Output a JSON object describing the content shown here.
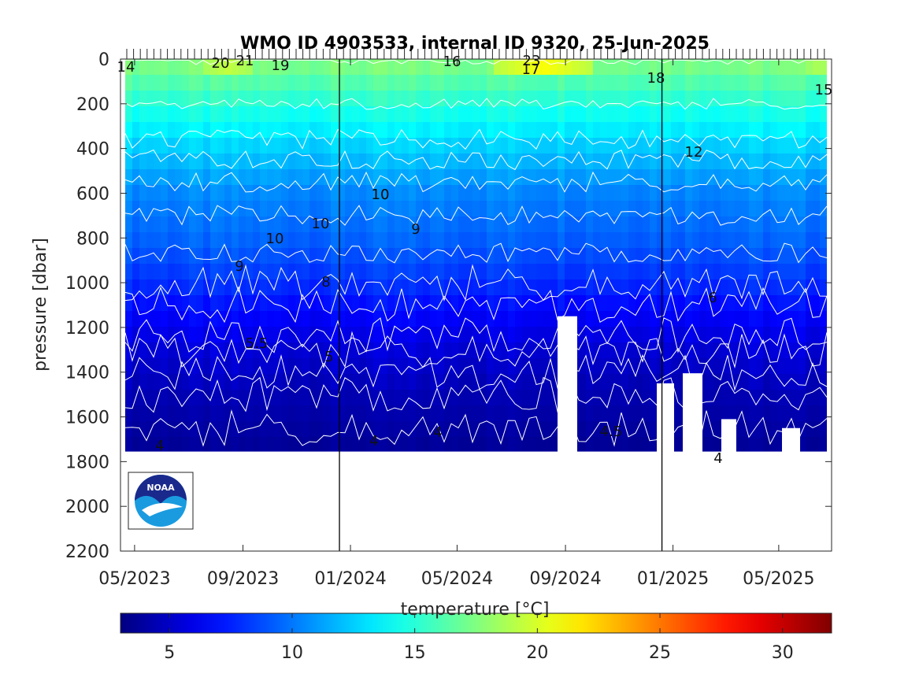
{
  "chart_data": {
    "type": "heatmap",
    "title": "WMO ID 4903533, internal ID 9320, 25-Jun-2025",
    "xlabel": "",
    "ylabel": "pressure [dbar]",
    "ylim": [
      0,
      2200
    ],
    "y_reversed": true,
    "y_ticks": [
      "0",
      "200",
      "400",
      "600",
      "800",
      "1000",
      "1200",
      "1400",
      "1600",
      "1800",
      "2000",
      "2200"
    ],
    "x_ticks": [
      "05/2023",
      "09/2023",
      "01/2024",
      "05/2024",
      "09/2024",
      "01/2025",
      "05/2025"
    ],
    "xlim": [
      "2023-04-15",
      "2025-06-30"
    ],
    "year_boundaries": [
      "2024-01-01",
      "2025-01-01"
    ],
    "colorbar": {
      "label": "temperature [°C]",
      "range": [
        3,
        32
      ],
      "ticks": [
        "5",
        "10",
        "15",
        "20",
        "25",
        "30"
      ],
      "colormap": "jet"
    },
    "depth_temperature_profile": [
      {
        "pressure": 0,
        "temperature": 18
      },
      {
        "pressure": 50,
        "temperature": 17
      },
      {
        "pressure": 200,
        "temperature": 15
      },
      {
        "pressure": 400,
        "temperature": 12.5
      },
      {
        "pressure": 600,
        "temperature": 10.5
      },
      {
        "pressure": 800,
        "temperature": 9.5
      },
      {
        "pressure": 1000,
        "temperature": 8
      },
      {
        "pressure": 1100,
        "temperature": 7
      },
      {
        "pressure": 1300,
        "temperature": 5.5
      },
      {
        "pressure": 1500,
        "temperature": 4.5
      },
      {
        "pressure": 1800,
        "temperature": 3.5
      }
    ],
    "surface_warm_periods": [
      {
        "start": "2023-07-15",
        "end": "2023-09-15",
        "peak": 21
      },
      {
        "start": "2024-06-15",
        "end": "2024-09-30",
        "peak": 24
      },
      {
        "start": "2025-06-01",
        "end": "2025-06-30",
        "peak": 20
      }
    ],
    "contour_labels": [
      "14",
      "20",
      "21",
      "19",
      "16",
      "23",
      "17",
      "18",
      "15",
      "12",
      "10",
      "10",
      "10",
      "9",
      "9",
      "10",
      "8",
      "6",
      "5.5",
      "5",
      "4",
      "4",
      "4",
      "4.5",
      "4"
    ],
    "logo": "NOAA"
  }
}
